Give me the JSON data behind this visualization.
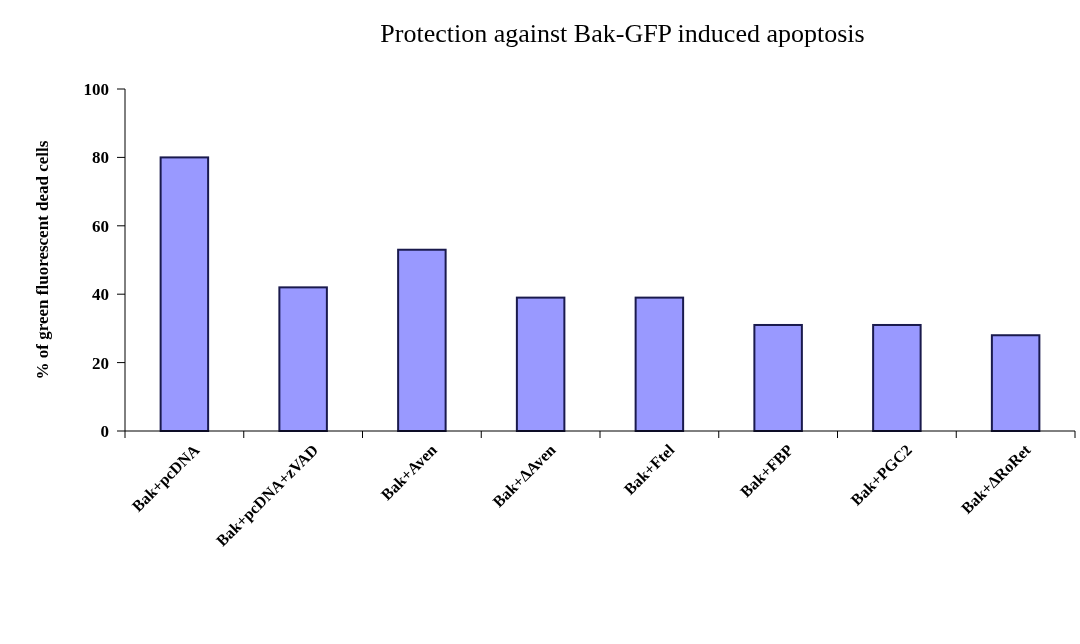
{
  "chart_data": {
    "type": "bar",
    "title": "Protection against Bak-GFP induced apoptosis",
    "ylabel": "% of green fluorescent dead cells",
    "categories": [
      "Bak+pcDNA",
      "Bak+pcDNA+zVAD",
      "Bak+Aven",
      "Bak+ΔAven",
      "Bak+Ftel",
      "Bak+FBP",
      "Bak+PGC2",
      "Bak+ΔRoRet"
    ],
    "values": [
      80,
      42,
      53,
      39,
      39,
      31,
      31,
      28
    ],
    "color": "#9999ff",
    "ylim": [
      0,
      100
    ],
    "yticks": [
      0,
      20,
      40,
      60,
      80,
      100
    ],
    "grid": false
  }
}
